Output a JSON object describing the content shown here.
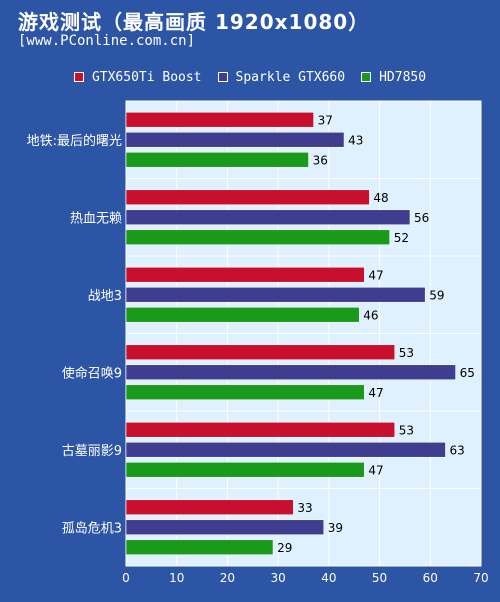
{
  "title": "游戏测试（最高画质 1920x1080）",
  "subtitle": "[www.PConline.com.cn]",
  "colors": {
    "background": "#2d55a5",
    "plot_bg": "#dff0ff"
  },
  "chart_data": {
    "type": "bar",
    "orientation": "horizontal",
    "categories": [
      "地铁:最后的曙光",
      "热血无赖",
      "战地3",
      "使命召唤9",
      "古墓丽影9",
      "孤岛危机3"
    ],
    "series": [
      {
        "name": "GTX650Ti Boost",
        "color": "#c8102e",
        "values": [
          37,
          48,
          47,
          53,
          53,
          33
        ]
      },
      {
        "name": "Sparkle GTX660",
        "color": "#3f3d8f",
        "values": [
          43,
          56,
          59,
          65,
          63,
          39
        ]
      },
      {
        "name": "HD7850",
        "color": "#1a9a1a",
        "values": [
          36,
          52,
          46,
          47,
          47,
          29
        ]
      }
    ],
    "xlim": [
      0,
      70
    ],
    "xticks": [
      0,
      10,
      20,
      30,
      40,
      50,
      60,
      70
    ],
    "grid": true,
    "legend_position": "top"
  }
}
